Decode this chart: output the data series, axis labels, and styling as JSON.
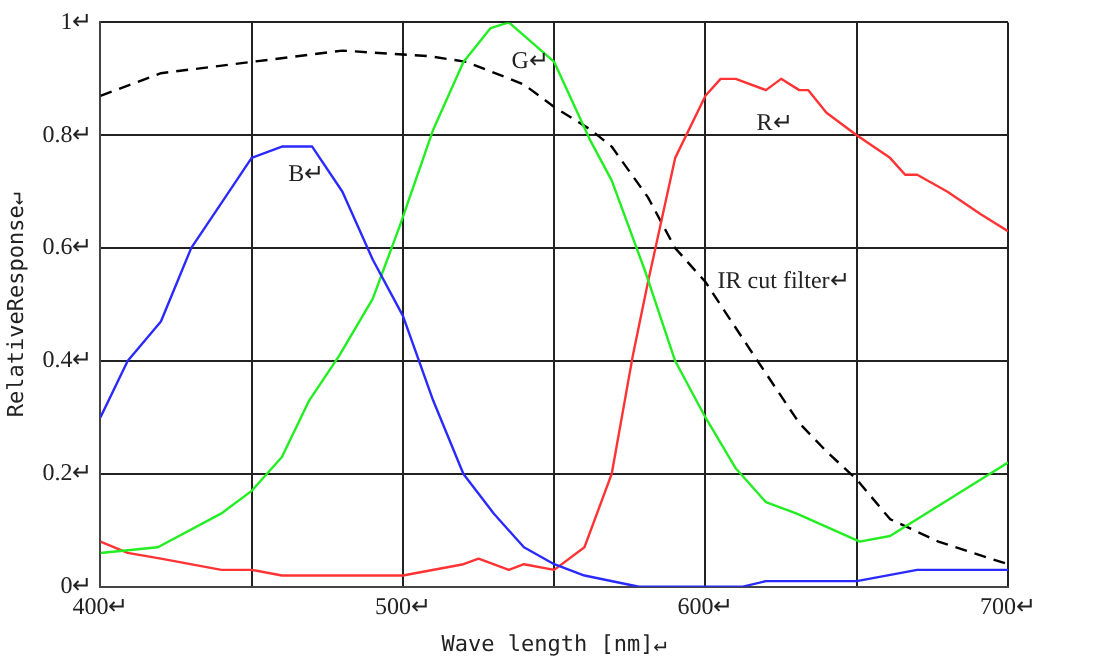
{
  "chart_data": {
    "type": "line",
    "xlabel": "Wave length [nm]↵",
    "ylabel": "RelativeResponse↵",
    "xlim": [
      400,
      700
    ],
    "ylim": [
      0,
      1
    ],
    "xticks": [
      {
        "value": 400,
        "label": "400↵"
      },
      {
        "value": 450,
        "label": null
      },
      {
        "value": 500,
        "label": "500↵"
      },
      {
        "value": 550,
        "label": null
      },
      {
        "value": 600,
        "label": "600↵"
      },
      {
        "value": 650,
        "label": null
      },
      {
        "value": 700,
        "label": "700↵"
      }
    ],
    "yticks": [
      {
        "value": 0,
        "label": "0↵"
      },
      {
        "value": 0.2,
        "label": "0.2↵"
      },
      {
        "value": 0.4,
        "label": "0.4↵"
      },
      {
        "value": 0.6,
        "label": "0.6↵"
      },
      {
        "value": 0.8,
        "label": "0.8↵"
      },
      {
        "value": 1,
        "label": "1↵"
      }
    ],
    "grid": true,
    "legend": false,
    "marker": "none",
    "series": [
      {
        "name": "B↵",
        "color": "#2a2aff",
        "line_style": "solid",
        "x": [
          400,
          409,
          420,
          430,
          450,
          460,
          470,
          480,
          490,
          500,
          510,
          520,
          530,
          540,
          550,
          560,
          578,
          612,
          620,
          650,
          670,
          700
        ],
        "values": [
          0.3,
          0.4,
          0.47,
          0.6,
          0.76,
          0.78,
          0.78,
          0.7,
          0.58,
          0.48,
          0.33,
          0.2,
          0.13,
          0.07,
          0.04,
          0.02,
          0.0,
          0.0,
          0.01,
          0.01,
          0.03,
          0.03
        ]
      },
      {
        "name": "G↵",
        "color": "#22ee22",
        "line_style": "solid",
        "x": [
          400,
          419,
          440,
          450,
          460,
          469,
          479,
          490,
          499,
          510,
          520,
          529,
          535,
          550,
          562,
          569,
          580,
          590,
          600,
          610,
          620,
          630,
          651,
          661,
          691,
          700
        ],
        "values": [
          0.06,
          0.07,
          0.13,
          0.17,
          0.23,
          0.33,
          0.41,
          0.51,
          0.64,
          0.81,
          0.93,
          0.99,
          1.0,
          0.93,
          0.79,
          0.72,
          0.56,
          0.4,
          0.3,
          0.21,
          0.15,
          0.13,
          0.08,
          0.09,
          0.19,
          0.22
        ]
      },
      {
        "name": "R↵",
        "color": "#ff3333",
        "line_style": "solid",
        "x": [
          400,
          409,
          420,
          440,
          450,
          460,
          500,
          520,
          525,
          535,
          540,
          550,
          560,
          569,
          576,
          581,
          590,
          600,
          605,
          610,
          620,
          625,
          631,
          634,
          640,
          650,
          661,
          666,
          670,
          680,
          691,
          700
        ],
        "values": [
          0.08,
          0.06,
          0.05,
          0.03,
          0.03,
          0.02,
          0.02,
          0.04,
          0.05,
          0.03,
          0.04,
          0.03,
          0.07,
          0.2,
          0.41,
          0.54,
          0.76,
          0.87,
          0.9,
          0.9,
          0.88,
          0.9,
          0.88,
          0.88,
          0.84,
          0.8,
          0.76,
          0.73,
          0.73,
          0.7,
          0.66,
          0.63
        ]
      },
      {
        "name": "IR cut filter↵",
        "color": "#000000",
        "line_style": "dashed",
        "x": [
          400,
          420,
          450,
          480,
          509,
          521,
          540,
          550,
          562,
          569,
          581,
          590,
          600,
          616,
          631,
          640,
          650,
          661,
          677,
          700
        ],
        "values": [
          0.87,
          0.91,
          0.93,
          0.95,
          0.94,
          0.93,
          0.89,
          0.85,
          0.81,
          0.78,
          0.69,
          0.6,
          0.54,
          0.41,
          0.29,
          0.24,
          0.19,
          0.12,
          0.08,
          0.04
        ]
      }
    ]
  }
}
